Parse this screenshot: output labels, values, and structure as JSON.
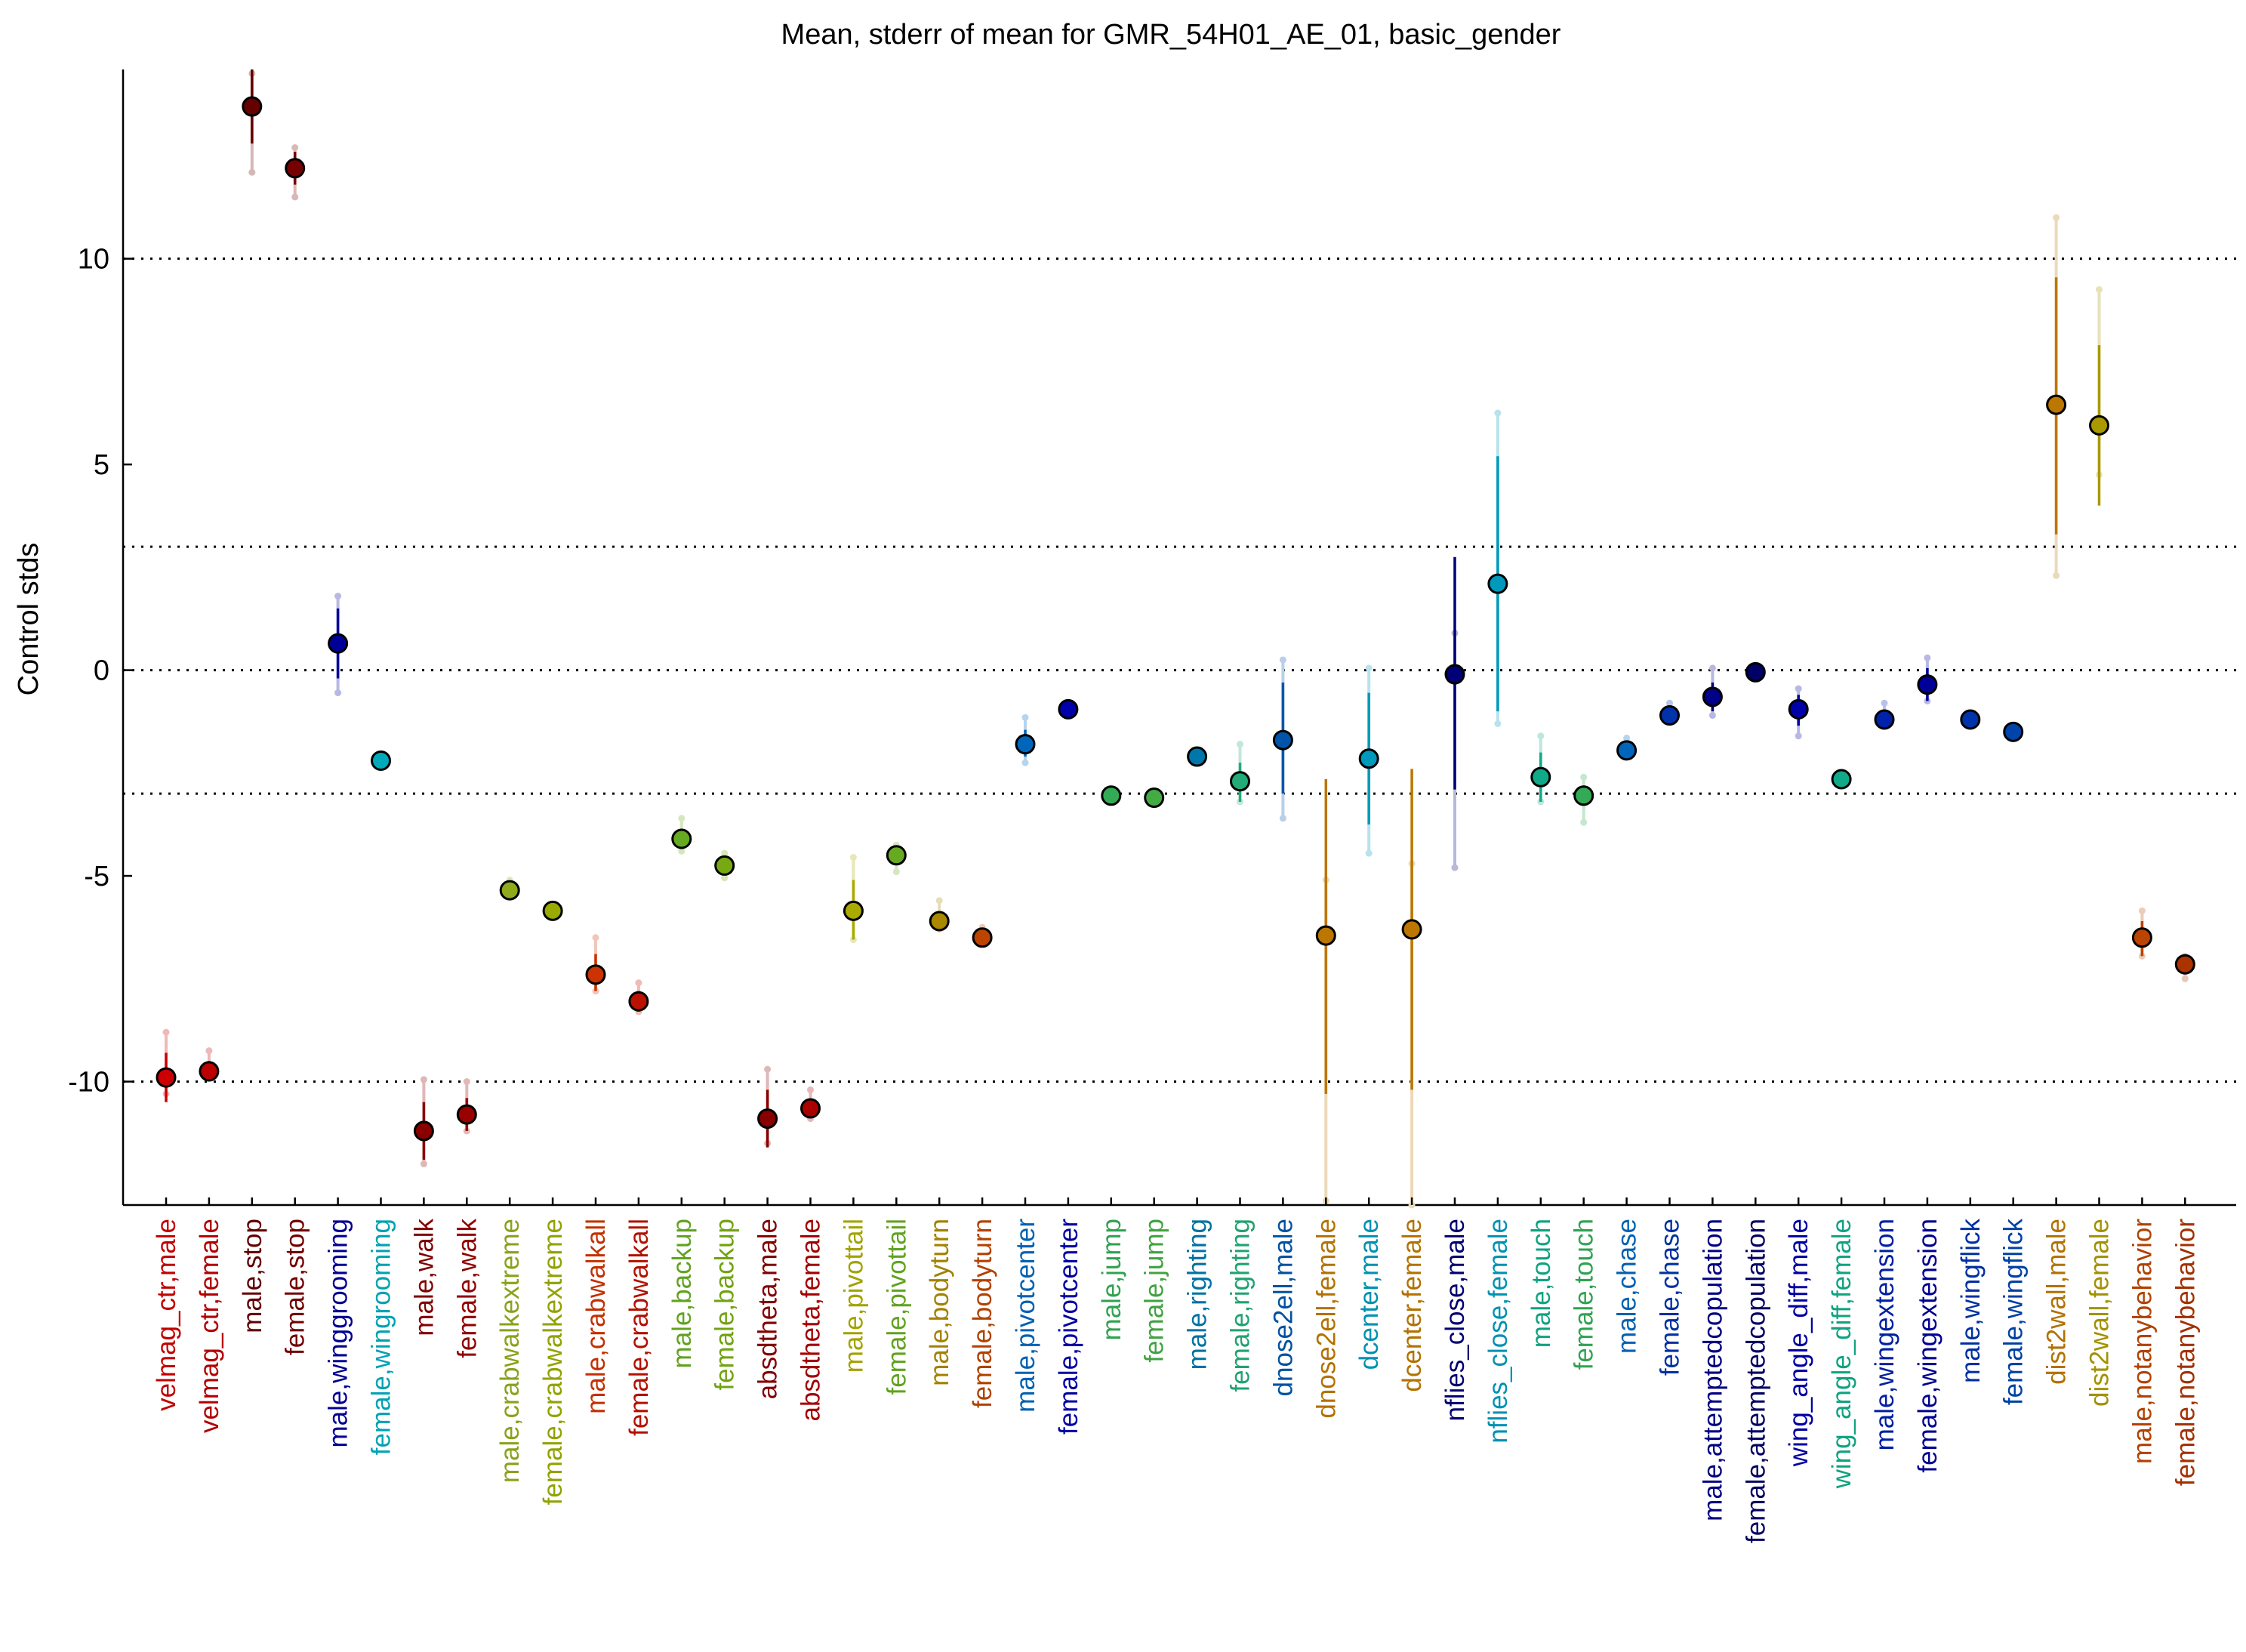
{
  "chart_data": {
    "type": "scatter",
    "title": "Mean, stderr of mean for GMR_54H01_AE_01, basic_gender",
    "ylabel": "Control stds",
    "xlabel": "",
    "ylim": [
      -13,
      14.6
    ],
    "yticks": [
      -10,
      -5,
      0,
      5,
      10
    ],
    "ytick_labels": [
      "-10",
      "-5",
      "0",
      "5",
      "10"
    ],
    "reference_lines": [
      10,
      3,
      0,
      -3,
      -10
    ],
    "grid": false,
    "points": [
      {
        "label": "velmag_ctr,male",
        "color": "#cc0000",
        "mean": -9.9,
        "err_lo": -10.5,
        "err_hi": -9.3,
        "faint_lo": -10.3,
        "faint_hi": -8.8
      },
      {
        "label": "velmag_ctr,female",
        "color": "#bb0000",
        "mean": -9.75,
        "err_lo": -10.0,
        "err_hi": -9.5,
        "faint_lo": -9.9,
        "faint_hi": -9.25
      },
      {
        "label": "male,stop",
        "color": "#660000",
        "mean": 13.7,
        "err_lo": 12.8,
        "err_hi": 14.6,
        "faint_lo": 12.1,
        "faint_hi": 14.5
      },
      {
        "label": "female,stop",
        "color": "#770000",
        "mean": 12.2,
        "err_lo": 11.8,
        "err_hi": 12.6,
        "faint_lo": 11.5,
        "faint_hi": 12.7
      },
      {
        "label": "male,winggrooming",
        "color": "#000099",
        "mean": 0.65,
        "err_lo": -0.2,
        "err_hi": 1.5,
        "faint_lo": -0.55,
        "faint_hi": 1.8
      },
      {
        "label": "female,wingrooming",
        "color": "#00aabb",
        "mean": -2.2,
        "err_lo": -2.3,
        "err_hi": -2.1,
        "faint_lo": -2.3,
        "faint_hi": -2.1
      },
      {
        "label": "male,walk",
        "color": "#880000",
        "mean": -11.2,
        "err_lo": -11.9,
        "err_hi": -10.5,
        "faint_lo": -12.0,
        "faint_hi": -9.95
      },
      {
        "label": "female,walk",
        "color": "#990000",
        "mean": -10.8,
        "err_lo": -11.2,
        "err_hi": -10.4,
        "faint_lo": -11.2,
        "faint_hi": -10.0
      },
      {
        "label": "male,crabwalkextreme",
        "color": "#8faa1b",
        "mean": -5.35,
        "err_lo": -5.45,
        "err_hi": -5.2,
        "faint_lo": -5.5,
        "faint_hi": -5.1
      },
      {
        "label": "female,crabwalkextreme",
        "color": "#99aa00",
        "mean": -5.85,
        "err_lo": -5.95,
        "err_hi": -5.75,
        "faint_lo": -5.95,
        "faint_hi": -5.7
      },
      {
        "label": "male,crabwalkall",
        "color": "#cc3300",
        "mean": -7.4,
        "err_lo": -7.8,
        "err_hi": -6.9,
        "faint_lo": -7.8,
        "faint_hi": -6.5
      },
      {
        "label": "female,crabwalkall",
        "color": "#bb1100",
        "mean": -8.05,
        "err_lo": -8.3,
        "err_hi": -7.8,
        "faint_lo": -8.3,
        "faint_hi": -7.6
      },
      {
        "label": "male,backup",
        "color": "#66aa22",
        "mean": -4.1,
        "err_lo": -4.35,
        "err_hi": -3.85,
        "faint_lo": -4.4,
        "faint_hi": -3.6
      },
      {
        "label": "female,backup",
        "color": "#77aa11",
        "mean": -4.75,
        "err_lo": -4.95,
        "err_hi": -4.55,
        "faint_lo": -5.05,
        "faint_hi": -4.45
      },
      {
        "label": "absdtheta,male",
        "color": "#880000",
        "mean": -10.9,
        "err_lo": -11.6,
        "err_hi": -10.2,
        "faint_lo": -11.5,
        "faint_hi": -9.7
      },
      {
        "label": "absdtheta,female",
        "color": "#aa0000",
        "mean": -10.65,
        "err_lo": -10.85,
        "err_hi": -10.45,
        "faint_lo": -10.9,
        "faint_hi": -10.2
      },
      {
        "label": "male,pivottail",
        "color": "#aaaa00",
        "mean": -5.85,
        "err_lo": -6.55,
        "err_hi": -5.1,
        "faint_lo": -6.55,
        "faint_hi": -4.55
      },
      {
        "label": "female,pivottail",
        "color": "#66aa22",
        "mean": -4.5,
        "err_lo": -4.65,
        "err_hi": -4.35,
        "faint_lo": -4.9,
        "faint_hi": -4.25
      },
      {
        "label": "male,bodyturn",
        "color": "#aa8800",
        "mean": -6.1,
        "err_lo": -6.25,
        "err_hi": -5.9,
        "faint_lo": -6.3,
        "faint_hi": -5.6
      },
      {
        "label": "female,bodyturn",
        "color": "#bb4400",
        "mean": -6.5,
        "err_lo": -6.6,
        "err_hi": -6.35,
        "faint_lo": -6.65,
        "faint_hi": -6.25
      },
      {
        "label": "male,pivotcenter",
        "color": "#0066bb",
        "mean": -1.8,
        "err_lo": -2.1,
        "err_hi": -1.45,
        "faint_lo": -2.25,
        "faint_hi": -1.15
      },
      {
        "label": "female,pivotcenter",
        "color": "#0000aa",
        "mean": -0.95,
        "err_lo": -1.0,
        "err_hi": -0.9,
        "faint_lo": -1.0,
        "faint_hi": -0.9
      },
      {
        "label": "male,jump",
        "color": "#33aa55",
        "mean": -3.05,
        "err_lo": -3.15,
        "err_hi": -2.95,
        "faint_lo": -3.15,
        "faint_hi": -2.95
      },
      {
        "label": "female,jump",
        "color": "#44aa44",
        "mean": -3.1,
        "err_lo": -3.2,
        "err_hi": -3.0,
        "faint_lo": -3.2,
        "faint_hi": -3.0
      },
      {
        "label": "male,righting",
        "color": "#0077aa",
        "mean": -2.1,
        "err_lo": -2.2,
        "err_hi": -2.0,
        "faint_lo": -2.2,
        "faint_hi": -2.0
      },
      {
        "label": "female,righting",
        "color": "#22aa77",
        "mean": -2.7,
        "err_lo": -3.2,
        "err_hi": -2.25,
        "faint_lo": -3.2,
        "faint_hi": -1.8
      },
      {
        "label": "dnose2ell,male",
        "color": "#0055aa",
        "mean": -1.7,
        "err_lo": -3.0,
        "err_hi": -0.3,
        "faint_lo": -3.6,
        "faint_hi": 0.25
      },
      {
        "label": "dnose2ell,female",
        "color": "#bb7700",
        "mean": -6.45,
        "err_lo": -10.3,
        "err_hi": -2.65,
        "faint_lo": -12.9,
        "faint_hi": -5.1
      },
      {
        "label": "dcenter,male",
        "color": "#0099bb",
        "mean": -2.15,
        "err_lo": -3.75,
        "err_hi": -0.55,
        "faint_lo": -4.45,
        "faint_hi": 0.05
      },
      {
        "label": "dcenter,female",
        "color": "#bb7700",
        "mean": -6.3,
        "err_lo": -10.2,
        "err_hi": -2.4,
        "faint_lo": -13.0,
        "faint_hi": -4.7
      },
      {
        "label": "nflies_close,male",
        "color": "#000077",
        "mean": -0.1,
        "err_lo": -2.9,
        "err_hi": 2.75,
        "faint_lo": -4.8,
        "faint_hi": 0.9
      },
      {
        "label": "nflies_close,female",
        "color": "#0099bb",
        "mean": 2.1,
        "err_lo": -1.0,
        "err_hi": 5.2,
        "faint_lo": -1.3,
        "faint_hi": 6.25
      },
      {
        "label": "male,touch",
        "color": "#11aa88",
        "mean": -2.6,
        "err_lo": -3.2,
        "err_hi": -2.0,
        "faint_lo": -3.2,
        "faint_hi": -1.6
      },
      {
        "label": "female,touch",
        "color": "#33aa55",
        "mean": -3.05,
        "err_lo": -3.3,
        "err_hi": -2.8,
        "faint_lo": -3.7,
        "faint_hi": -2.6
      },
      {
        "label": "male,chase",
        "color": "#0066bb",
        "mean": -1.95,
        "err_lo": -2.1,
        "err_hi": -1.8,
        "faint_lo": -2.1,
        "faint_hi": -1.65
      },
      {
        "label": "female,chase",
        "color": "#0033aa",
        "mean": -1.1,
        "err_lo": -1.2,
        "err_hi": -1.0,
        "faint_lo": -1.2,
        "faint_hi": -0.8
      },
      {
        "label": "male,attemptedcopulation",
        "color": "#000088",
        "mean": -0.65,
        "err_lo": -1.0,
        "err_hi": -0.3,
        "faint_lo": -1.1,
        "faint_hi": 0.05
      },
      {
        "label": "female,attemptedcopulation",
        "color": "#000066",
        "mean": -0.05,
        "err_lo": -0.1,
        "err_hi": 0.0,
        "faint_lo": -0.1,
        "faint_hi": 0.0
      },
      {
        "label": "wing_angle_diff,male",
        "color": "#0000aa",
        "mean": -0.95,
        "err_lo": -1.35,
        "err_hi": -0.6,
        "faint_lo": -1.6,
        "faint_hi": -0.45
      },
      {
        "label": "wing_angle_diff,female",
        "color": "#11aa88",
        "mean": -2.65,
        "err_lo": -2.75,
        "err_hi": -2.55,
        "faint_lo": -2.75,
        "faint_hi": -2.55
      },
      {
        "label": "male,wingextension",
        "color": "#0022aa",
        "mean": -1.2,
        "err_lo": -1.3,
        "err_hi": -1.05,
        "faint_lo": -1.35,
        "faint_hi": -0.8
      },
      {
        "label": "female,wingextension",
        "color": "#000099",
        "mean": -0.35,
        "err_lo": -0.75,
        "err_hi": 0.05,
        "faint_lo": -0.75,
        "faint_hi": 0.3
      },
      {
        "label": "male,wingflick",
        "color": "#0033aa",
        "mean": -1.2,
        "err_lo": -1.3,
        "err_hi": -1.1,
        "faint_lo": -1.3,
        "faint_hi": -1.1
      },
      {
        "label": "female,wingflick",
        "color": "#0044aa",
        "mean": -1.5,
        "err_lo": -1.6,
        "err_hi": -1.4,
        "faint_lo": -1.6,
        "faint_hi": -1.4
      },
      {
        "label": "dist2wall,male",
        "color": "#bb7700",
        "mean": 6.45,
        "err_lo": 3.3,
        "err_hi": 9.55,
        "faint_lo": 2.3,
        "faint_hi": 11.0
      },
      {
        "label": "dist2wall,female",
        "color": "#aa9900",
        "mean": 5.95,
        "err_lo": 4.0,
        "err_hi": 7.9,
        "faint_lo": 4.75,
        "faint_hi": 9.25
      },
      {
        "label": "male,notanybehavior",
        "color": "#bb4400",
        "mean": -6.5,
        "err_lo": -6.95,
        "err_hi": -6.1,
        "faint_lo": -6.95,
        "faint_hi": -5.85
      },
      {
        "label": "female,notanybehavior",
        "color": "#aa3300",
        "mean": -7.15,
        "err_lo": -7.3,
        "err_hi": -7.0,
        "faint_lo": -7.5,
        "faint_hi": -6.95
      }
    ]
  }
}
